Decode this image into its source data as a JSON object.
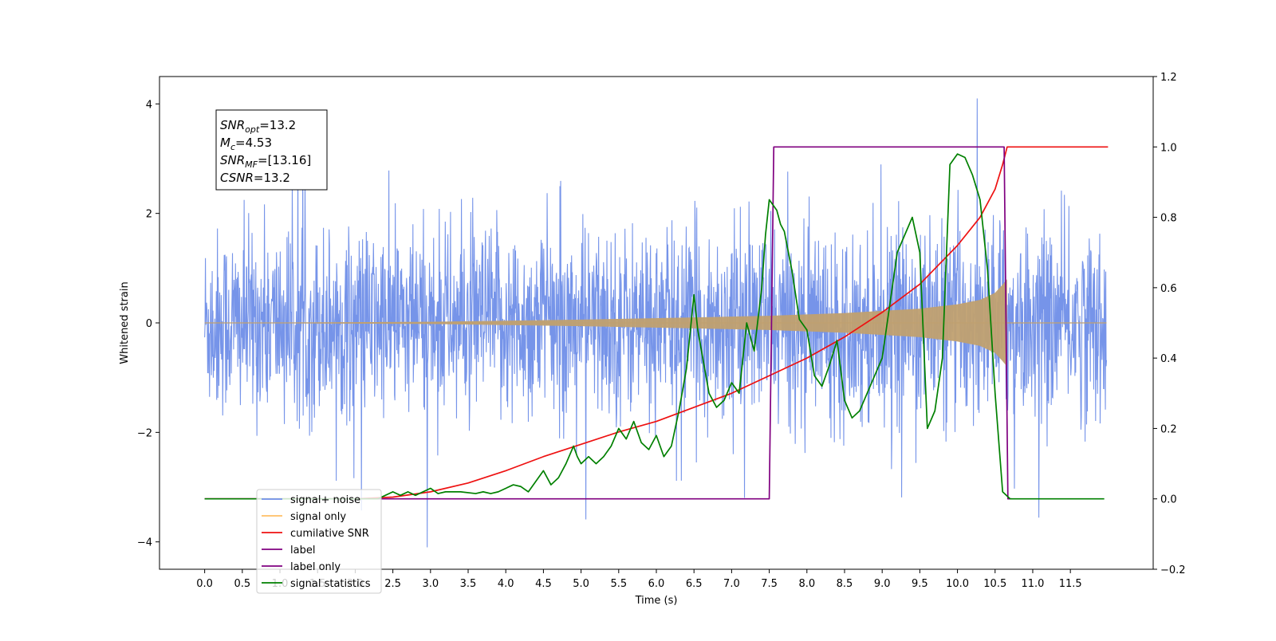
{
  "chart_data": {
    "type": "line",
    "xlabel": "Time (s)",
    "ylabel": "Whitened strain",
    "xlim": [
      -0.6,
      12.6
    ],
    "ylim": [
      -4.5,
      4.5
    ],
    "y2lim": [
      -0.2,
      1.2
    ],
    "x_ticks": [
      0.0,
      0.5,
      1.0,
      1.5,
      2.0,
      2.5,
      3.0,
      3.5,
      4.0,
      4.5,
      5.0,
      5.5,
      6.0,
      6.5,
      7.0,
      7.5,
      8.0,
      8.5,
      9.0,
      9.5,
      10.0,
      10.5,
      11.0,
      11.5
    ],
    "x_tick_labels": [
      "0.0",
      "0.5",
      "1.0",
      "1.5",
      "2.0",
      "2.5",
      "3.0",
      "3.5",
      "4.0",
      "4.5",
      "5.0",
      "5.5",
      "6.0",
      "6.5",
      "7.0",
      "7.5",
      "8.0",
      "8.5",
      "9.0",
      "9.5",
      "10.0",
      "10.5",
      "11.0",
      "11.5"
    ],
    "y_ticks": [
      -4,
      -2,
      0,
      2,
      4
    ],
    "y_tick_labels": [
      "−4",
      "−2",
      "0",
      "2",
      "4"
    ],
    "y2_ticks": [
      -0.2,
      0.0,
      0.2,
      0.4,
      0.6,
      0.8,
      1.0,
      1.2
    ],
    "y2_tick_labels": [
      "−0.2",
      "0.0",
      "0.2",
      "0.4",
      "0.6",
      "0.8",
      "1.0",
      "1.2"
    ],
    "grid": false,
    "legend_position": "lower-left",
    "annotation": {
      "lines": [
        {
          "main": "SNR",
          "sub": "opt",
          "rest": "=13.2"
        },
        {
          "main": "M",
          "sub": "c",
          "rest": "=4.53"
        },
        {
          "main": "SNR",
          "sub": "MF",
          "rest": "=[13.16]"
        },
        {
          "main": "CSNR",
          "sub": "",
          "rest": "=13.2"
        }
      ]
    },
    "series": [
      {
        "name": "signal+ noise",
        "axis": "left",
        "color": "#6f8ee8",
        "kind": "noise",
        "x_range": [
          0.0,
          11.98
        ],
        "envelope_sigma": 0.85
      },
      {
        "name": "signal only",
        "axis": "left",
        "color": "#ffbf66",
        "fill_color": "#c0a070",
        "kind": "chirp",
        "x_range": [
          0.0,
          11.98
        ],
        "merger_time": 10.66,
        "amplitude_points": {
          "x": [
            0.0,
            3.0,
            5.0,
            6.5,
            7.5,
            8.5,
            9.5,
            10.0,
            10.3,
            10.5,
            10.6,
            10.66
          ],
          "y": [
            0.0,
            0.02,
            0.06,
            0.1,
            0.13,
            0.18,
            0.26,
            0.34,
            0.42,
            0.55,
            0.7,
            0.8
          ]
        }
      },
      {
        "name": "cumilative SNR",
        "axis": "right",
        "color": "#ee1111",
        "x": [
          0.0,
          1.0,
          2.0,
          2.5,
          3.0,
          3.5,
          4.0,
          4.5,
          5.0,
          5.5,
          6.0,
          6.5,
          7.0,
          7.5,
          8.0,
          8.5,
          9.0,
          9.5,
          10.0,
          10.3,
          10.5,
          10.6,
          10.66,
          11.0,
          11.5,
          12.0
        ],
        "y": [
          0.0,
          0.0,
          0.0,
          0.005,
          0.02,
          0.045,
          0.08,
          0.12,
          0.155,
          0.19,
          0.22,
          0.26,
          0.3,
          0.35,
          0.4,
          0.46,
          0.53,
          0.61,
          0.72,
          0.8,
          0.88,
          0.95,
          1.0,
          1.0,
          1.0,
          1.0
        ]
      },
      {
        "name": "label",
        "axis": "right",
        "color": "#800080",
        "x": [
          0.0,
          7.5,
          7.56,
          10.62,
          10.67,
          10.72
        ],
        "y": [
          0.0,
          0.0,
          1.0,
          1.0,
          0.0,
          0.0
        ]
      },
      {
        "name": "label only",
        "axis": "right",
        "color": "#800080",
        "hidden_in_plot": true
      },
      {
        "name": "signal statistics",
        "axis": "right",
        "color": "#008000",
        "x": [
          0.0,
          2.3,
          2.4,
          2.5,
          2.6,
          2.7,
          2.8,
          2.9,
          3.0,
          3.1,
          3.2,
          3.4,
          3.6,
          3.7,
          3.8,
          3.9,
          4.0,
          4.1,
          4.2,
          4.3,
          4.4,
          4.5,
          4.6,
          4.7,
          4.8,
          4.9,
          4.95,
          5.0,
          5.1,
          5.2,
          5.3,
          5.4,
          5.5,
          5.6,
          5.7,
          5.8,
          5.9,
          6.0,
          6.1,
          6.2,
          6.3,
          6.4,
          6.5,
          6.55,
          6.6,
          6.7,
          6.8,
          6.9,
          7.0,
          7.1,
          7.2,
          7.3,
          7.4,
          7.45,
          7.5,
          7.6,
          7.65,
          7.7,
          7.8,
          7.9,
          8.0,
          8.1,
          8.2,
          8.3,
          8.4,
          8.5,
          8.6,
          8.7,
          8.8,
          8.9,
          9.0,
          9.1,
          9.2,
          9.3,
          9.4,
          9.5,
          9.6,
          9.7,
          9.8,
          9.9,
          10.0,
          10.1,
          10.2,
          10.3,
          10.4,
          10.5,
          10.6,
          10.7,
          10.8,
          11.0,
          11.5,
          11.95
        ],
        "y": [
          0.0,
          0.0,
          0.01,
          0.02,
          0.01,
          0.02,
          0.01,
          0.02,
          0.03,
          0.015,
          0.02,
          0.02,
          0.015,
          0.02,
          0.015,
          0.02,
          0.03,
          0.04,
          0.035,
          0.02,
          0.05,
          0.08,
          0.04,
          0.06,
          0.1,
          0.15,
          0.12,
          0.1,
          0.12,
          0.1,
          0.12,
          0.15,
          0.2,
          0.17,
          0.22,
          0.16,
          0.14,
          0.18,
          0.12,
          0.15,
          0.25,
          0.37,
          0.58,
          0.48,
          0.42,
          0.3,
          0.26,
          0.28,
          0.33,
          0.3,
          0.5,
          0.42,
          0.6,
          0.75,
          0.85,
          0.82,
          0.78,
          0.76,
          0.65,
          0.51,
          0.48,
          0.35,
          0.32,
          0.38,
          0.45,
          0.28,
          0.23,
          0.25,
          0.3,
          0.35,
          0.4,
          0.55,
          0.7,
          0.75,
          0.8,
          0.7,
          0.2,
          0.25,
          0.4,
          0.95,
          0.98,
          0.97,
          0.92,
          0.85,
          0.65,
          0.3,
          0.02,
          0.0,
          0.0,
          0.0,
          0.0,
          0.0
        ]
      }
    ]
  }
}
